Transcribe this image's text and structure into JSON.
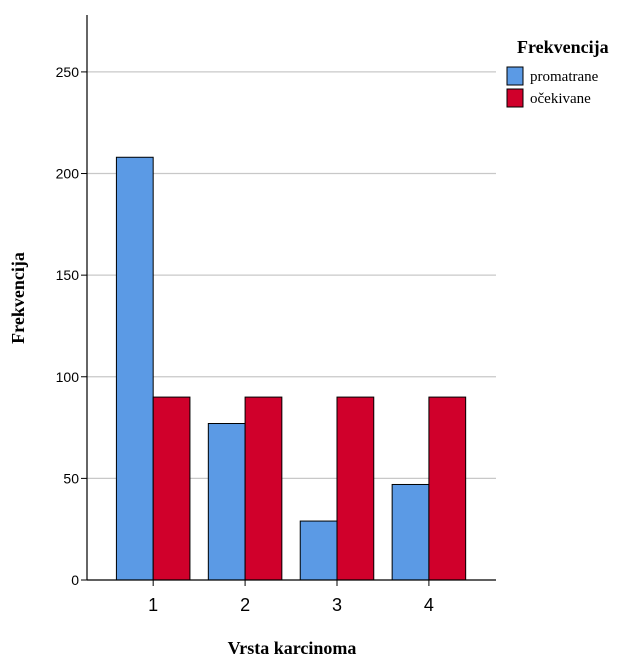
{
  "chart_data": {
    "type": "bar",
    "categories": [
      "1",
      "2",
      "3",
      "4"
    ],
    "series": [
      {
        "name": "promatrane",
        "values": [
          208,
          77,
          29,
          47
        ],
        "color": "#5b9ae5"
      },
      {
        "name": "očekivane",
        "values": [
          90,
          90,
          90,
          90
        ],
        "color": "#d0002b"
      }
    ],
    "xlabel": "Vrsta karcinoma",
    "ylabel": "Frekvencija",
    "ylim": [
      0,
      278
    ],
    "yticks": [
      0,
      50,
      100,
      150,
      200,
      250
    ],
    "grid": true,
    "legend": {
      "title": "Frekvencija",
      "position": "top-right"
    }
  }
}
